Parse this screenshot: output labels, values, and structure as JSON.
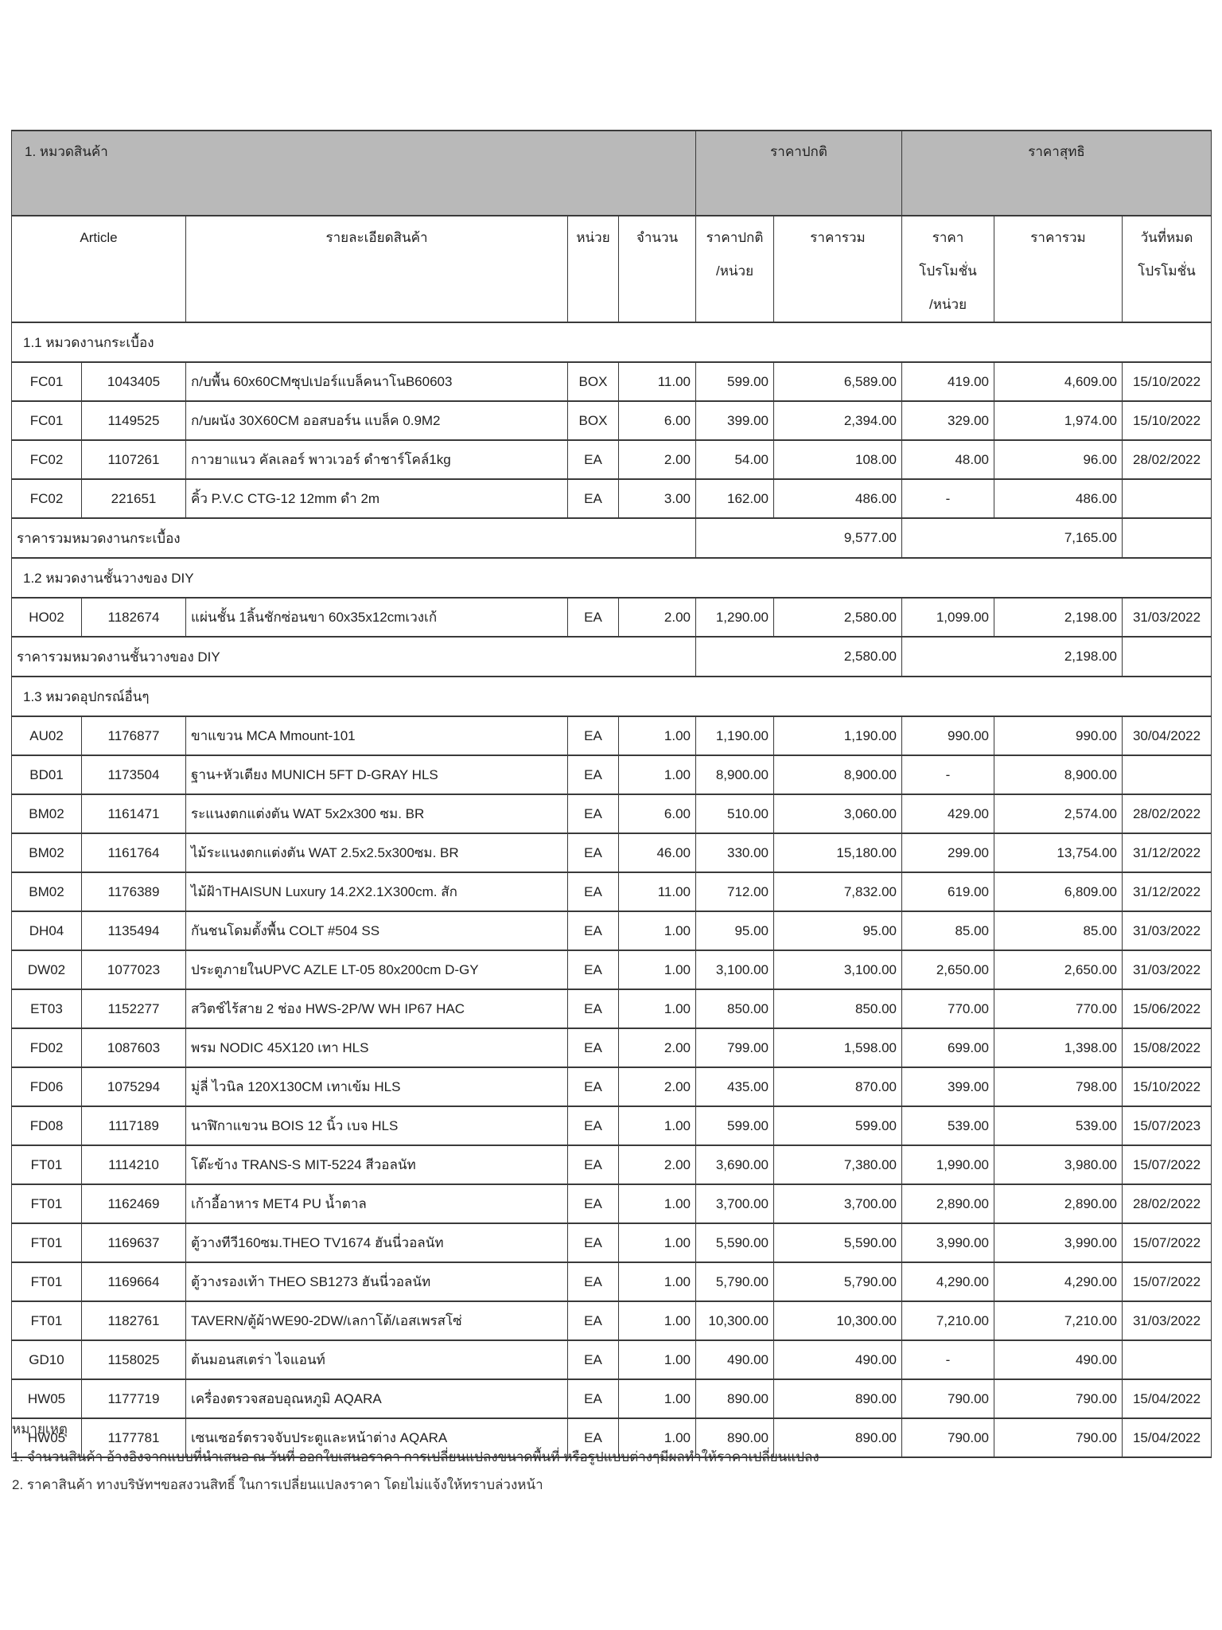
{
  "colors": {
    "header_bg": "#b9b9b9",
    "border": "#3a3a3a",
    "text": "#212121",
    "page_bg": "#ffffff"
  },
  "table": {
    "group_header": {
      "left": "1. หมวดสินค้า",
      "normal": "ราคาปกติ",
      "net": "ราคาสุทธิ"
    },
    "columns": [
      {
        "label": "Article"
      },
      {
        "label": "รายละเอียดสินค้า"
      },
      {
        "label": "หน่วย"
      },
      {
        "label": "จำนวน"
      },
      {
        "label": "ราคาปกติ\n/หน่วย"
      },
      {
        "label": "ราคารวม"
      },
      {
        "label": "ราคา\nโปรโมชั่น\n/หน่วย"
      },
      {
        "label": "ราคารวม"
      },
      {
        "label": "วันที่หมด\nโปรโมชั่น"
      }
    ],
    "sections": [
      {
        "title": "1.1 หมวดงานกระเบื้อง",
        "rows": [
          [
            "FC01",
            "1043405",
            "ก/บพื้น 60x60CMซุปเปอร์แบล็คนาโนB60603",
            "BOX",
            "11.00",
            "599.00",
            "6,589.00",
            "419.00",
            "4,609.00",
            "15/10/2022"
          ],
          [
            "FC01",
            "1149525",
            "ก/บผนัง 30X60CM ออสบอร์น แบล็ค 0.9M2",
            "BOX",
            "6.00",
            "399.00",
            "2,394.00",
            "329.00",
            "1,974.00",
            "15/10/2022"
          ],
          [
            "FC02",
            "1107261",
            "กาวยาแนว คัลเลอร์ พาวเวอร์ ดำชาร์โคล์1kg",
            "EA",
            "2.00",
            "54.00",
            "108.00",
            "48.00",
            "96.00",
            "28/02/2022"
          ],
          [
            "FC02",
            "221651",
            "คิ้ว P.V.C CTG-12 12mm ดำ 2m",
            "EA",
            "3.00",
            "162.00",
            "486.00",
            "-",
            "486.00",
            ""
          ]
        ],
        "total": {
          "label": "ราคารวมหมวดงานกระเบื้อง",
          "normal": "9,577.00",
          "net": "7,165.00"
        }
      },
      {
        "title": "1.2 หมวดงานชั้นวางของ DIY",
        "rows": [
          [
            "HO02",
            "1182674",
            "แผ่นชั้น 1ลิ้นชักซ่อนขา 60x35x12cmเวงเก้",
            "EA",
            "2.00",
            "1,290.00",
            "2,580.00",
            "1,099.00",
            "2,198.00",
            "31/03/2022"
          ]
        ],
        "total": {
          "label": "ราคารวมหมวดงานชั้นวางของ DIY",
          "normal": "2,580.00",
          "net": "2,198.00"
        }
      },
      {
        "title": "1.3 หมวดอุปกรณ์อื่นๆ",
        "rows": [
          [
            "AU02",
            "1176877",
            "ขาแขวน MCA Mmount-101",
            "EA",
            "1.00",
            "1,190.00",
            "1,190.00",
            "990.00",
            "990.00",
            "30/04/2022"
          ],
          [
            "BD01",
            "1173504",
            "ฐาน+หัวเตียง MUNICH 5FT D-GRAY HLS",
            "EA",
            "1.00",
            "8,900.00",
            "8,900.00",
            "-",
            "8,900.00",
            ""
          ],
          [
            "BM02",
            "1161471",
            "ระแนงตกแต่งตัน WAT  5x2x300 ซม. BR",
            "EA",
            "6.00",
            "510.00",
            "3,060.00",
            "429.00",
            "2,574.00",
            "28/02/2022"
          ],
          [
            "BM02",
            "1161764",
            "ไม้ระแนงตกแต่งตัน WAT  2.5x2.5x300ซม. BR",
            "EA",
            "46.00",
            "330.00",
            "15,180.00",
            "299.00",
            "13,754.00",
            "31/12/2022"
          ],
          [
            "BM02",
            "1176389",
            "ไม้ฝ้าTHAISUN Luxury 14.2X2.1X300cm. สัก",
            "EA",
            "11.00",
            "712.00",
            "7,832.00",
            "619.00",
            "6,809.00",
            "31/12/2022"
          ],
          [
            "DH04",
            "1135494",
            "กันชนโดมตั้งพื้น COLT #504  SS",
            "EA",
            "1.00",
            "95.00",
            "95.00",
            "85.00",
            "85.00",
            "31/03/2022"
          ],
          [
            "DW02",
            "1077023",
            "ประตูภายในUPVC AZLE LT-05 80x200cm D-GY",
            "EA",
            "1.00",
            "3,100.00",
            "3,100.00",
            "2,650.00",
            "2,650.00",
            "31/03/2022"
          ],
          [
            "ET03",
            "1152277",
            "สวิตช์ไร้สาย 2 ช่อง HWS-2P/W WH IP67 HAC",
            "EA",
            "1.00",
            "850.00",
            "850.00",
            "770.00",
            "770.00",
            "15/06/2022"
          ],
          [
            "FD02",
            "1087603",
            "พรม NODIC 45X120 เทา HLS",
            "EA",
            "2.00",
            "799.00",
            "1,598.00",
            "699.00",
            "1,398.00",
            "15/08/2022"
          ],
          [
            "FD06",
            "1075294",
            "มู่ลี่ ไวนิล  120X130CM เทาเข้ม HLS",
            "EA",
            "2.00",
            "435.00",
            "870.00",
            "399.00",
            "798.00",
            "15/10/2022"
          ],
          [
            "FD08",
            "1117189",
            "นาฬิกาแขวน BOIS 12 นิ้ว เบจ HLS",
            "EA",
            "1.00",
            "599.00",
            "599.00",
            "539.00",
            "539.00",
            "15/07/2023"
          ],
          [
            "FT01",
            "1114210",
            "โต๊ะข้าง TRANS-S MIT-5224 สีวอลนัท",
            "EA",
            "2.00",
            "3,690.00",
            "7,380.00",
            "1,990.00",
            "3,980.00",
            "15/07/2022"
          ],
          [
            "FT01",
            "1162469",
            "เก้าอี้อาหาร MET4 PU น้ำตาล",
            "EA",
            "1.00",
            "3,700.00",
            "3,700.00",
            "2,890.00",
            "2,890.00",
            "28/02/2022"
          ],
          [
            "FT01",
            "1169637",
            "ตู้วางทีวี160ซม.THEO TV1674 ฮันนี่วอลนัท",
            "EA",
            "1.00",
            "5,590.00",
            "5,590.00",
            "3,990.00",
            "3,990.00",
            "15/07/2022"
          ],
          [
            "FT01",
            "1169664",
            "ตู้วางรองเท้า THEO SB1273 ฮันนี่วอลนัท",
            "EA",
            "1.00",
            "5,790.00",
            "5,790.00",
            "4,290.00",
            "4,290.00",
            "15/07/2022"
          ],
          [
            "FT01",
            "1182761",
            "TAVERN/ตู้ผ้าWE90-2DW/เลกาโต้/เอสเพรสโซ่",
            "EA",
            "1.00",
            "10,300.00",
            "10,300.00",
            "7,210.00",
            "7,210.00",
            "31/03/2022"
          ],
          [
            "GD10",
            "1158025",
            "ต้นมอนสเตร่า ไจแอนท์",
            "EA",
            "1.00",
            "490.00",
            "490.00",
            "-",
            "490.00",
            ""
          ],
          [
            "HW05",
            "1177719",
            "เครื่องตรวจสอบอุณหภูมิ AQARA",
            "EA",
            "1.00",
            "890.00",
            "890.00",
            "790.00",
            "790.00",
            "15/04/2022"
          ],
          [
            "HW05",
            "1177781",
            "เซนเซอร์ตรวจจับประตูและหน้าต่าง AQARA",
            "EA",
            "1.00",
            "890.00",
            "890.00",
            "790.00",
            "790.00",
            "15/04/2022"
          ]
        ],
        "total": null
      }
    ]
  },
  "notes": {
    "title": "หมายเหตุ",
    "lines": [
      "1. จำนวนสินค้า อ้างอิงจากแบบที่นำเสนอ ณ วันที่ ออกใบเสนอราคา การเปลี่ยนแปลงขนาดพื้นที่ หรือรูปแบบต่างๆมีผลทำให้ราคาเปลี่ยนแปลง",
      "2. ราคาสินค้า ทางบริษัทฯขอสงวนสิทธิ์ ในการเปลี่ยนแปลงราคา โดยไม่แจ้งให้ทราบล่วงหน้า"
    ]
  }
}
